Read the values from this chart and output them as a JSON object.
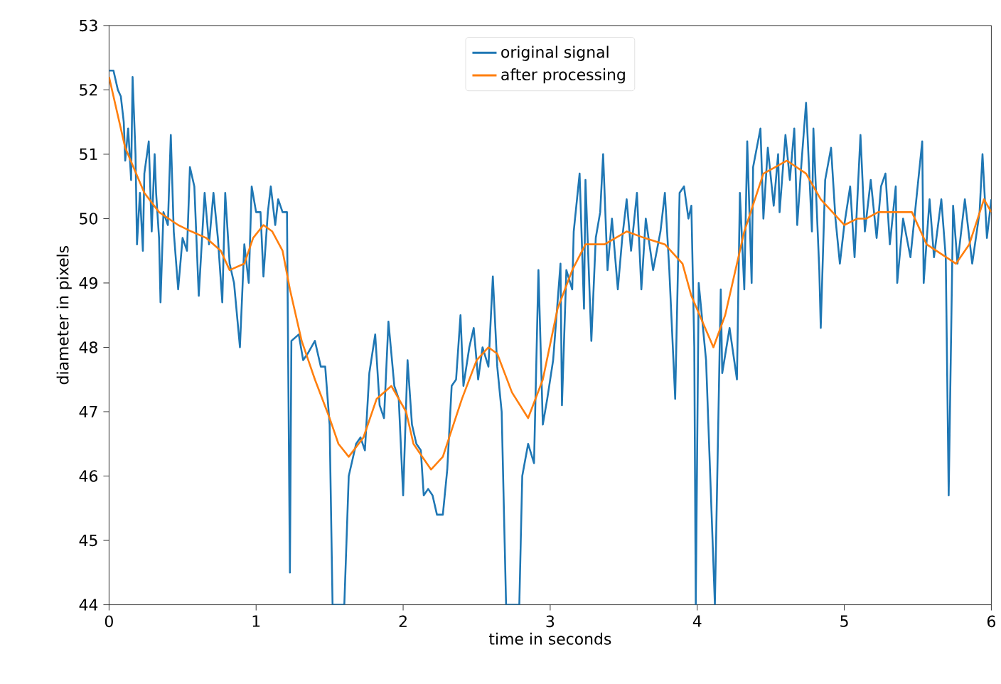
{
  "chart_data": {
    "type": "line",
    "xlabel": "time in seconds",
    "ylabel": "diameter in pixels",
    "xlim": [
      0,
      6
    ],
    "ylim": [
      44,
      53
    ],
    "xticks": [
      0,
      1,
      2,
      3,
      4,
      5,
      6
    ],
    "yticks": [
      44,
      45,
      46,
      47,
      48,
      49,
      50,
      51,
      52,
      53
    ],
    "grid": false,
    "legend": "top",
    "marker": "none",
    "line_style": "solid",
    "series": [
      {
        "name": "original signal",
        "color": "#1f77b4",
        "x": [
          0,
          0.03,
          0.06,
          0.08,
          0.1,
          0.11,
          0.13,
          0.15,
          0.16,
          0.18,
          0.19,
          0.21,
          0.23,
          0.24,
          0.27,
          0.29,
          0.31,
          0.32,
          0.34,
          0.35,
          0.37,
          0.4,
          0.42,
          0.44,
          0.47,
          0.5,
          0.53,
          0.55,
          0.58,
          0.61,
          0.65,
          0.68,
          0.71,
          0.74,
          0.77,
          0.79,
          0.82,
          0.85,
          0.89,
          0.92,
          0.95,
          0.97,
          1.0,
          1.03,
          1.05,
          1.08,
          1.1,
          1.13,
          1.15,
          1.18,
          1.21,
          1.23,
          1.24,
          1.29,
          1.32,
          1.35,
          1.4,
          1.44,
          1.47,
          1.5,
          1.52,
          1.6,
          1.63,
          1.68,
          1.71,
          1.74,
          1.77,
          1.81,
          1.84,
          1.87,
          1.9,
          1.94,
          1.97,
          2.0,
          2.03,
          2.06,
          2.09,
          2.12,
          2.14,
          2.17,
          2.2,
          2.23,
          2.27,
          2.3,
          2.33,
          2.36,
          2.39,
          2.41,
          2.45,
          2.48,
          2.51,
          2.54,
          2.58,
          2.61,
          2.64,
          2.67,
          2.7,
          2.79,
          2.81,
          2.85,
          2.89,
          2.92,
          2.95,
          2.98,
          3.02,
          3.07,
          3.08,
          3.11,
          3.15,
          3.16,
          3.2,
          3.23,
          3.24,
          3.28,
          3.31,
          3.34,
          3.36,
          3.39,
          3.42,
          3.46,
          3.49,
          3.52,
          3.55,
          3.59,
          3.62,
          3.65,
          3.7,
          3.75,
          3.78,
          3.81,
          3.85,
          3.88,
          3.91,
          3.94,
          3.96,
          3.98,
          3.99,
          4.01,
          4.06,
          4.12,
          4.16,
          4.17,
          4.22,
          4.27,
          4.29,
          4.32,
          4.34,
          4.37,
          4.38,
          4.43,
          4.45,
          4.48,
          4.52,
          4.55,
          4.56,
          4.6,
          4.63,
          4.66,
          4.68,
          4.71,
          4.74,
          4.78,
          4.79,
          4.83,
          4.84,
          4.87,
          4.91,
          4.94,
          4.97,
          5.0,
          5.04,
          5.07,
          5.11,
          5.14,
          5.18,
          5.22,
          5.25,
          5.28,
          5.31,
          5.35,
          5.36,
          5.4,
          5.45,
          5.49,
          5.53,
          5.54,
          5.58,
          5.61,
          5.66,
          5.69,
          5.71,
          5.74,
          5.77,
          5.82,
          5.87,
          5.92,
          5.94,
          5.97,
          6.0
        ],
        "values": [
          52.3,
          52.3,
          52.0,
          51.9,
          51.5,
          50.9,
          51.4,
          50.6,
          52.2,
          51.0,
          49.6,
          50.4,
          49.5,
          50.7,
          51.2,
          49.8,
          51.0,
          50.4,
          49.7,
          48.7,
          50.1,
          49.9,
          51.3,
          49.8,
          48.9,
          49.7,
          49.5,
          50.8,
          50.5,
          48.8,
          50.4,
          49.6,
          50.4,
          49.7,
          48.7,
          50.4,
          49.3,
          49.0,
          48.0,
          49.6,
          49.0,
          50.5,
          50.1,
          50.1,
          49.1,
          50.1,
          50.5,
          49.9,
          50.3,
          50.1,
          50.1,
          44.5,
          48.1,
          48.2,
          47.8,
          47.9,
          48.1,
          47.7,
          47.7,
          46.8,
          44.0,
          44.0,
          46.0,
          46.5,
          46.6,
          46.4,
          47.6,
          48.2,
          47.1,
          46.9,
          48.4,
          47.4,
          47.2,
          45.7,
          47.8,
          46.8,
          46.5,
          46.4,
          45.7,
          45.8,
          45.7,
          45.4,
          45.4,
          46.1,
          47.4,
          47.5,
          48.5,
          47.4,
          48.0,
          48.3,
          47.5,
          48.0,
          47.7,
          49.1,
          47.7,
          47.0,
          44.0,
          44.0,
          46.0,
          46.5,
          46.2,
          49.2,
          46.8,
          47.2,
          47.8,
          49.3,
          47.1,
          49.2,
          48.9,
          49.8,
          50.7,
          48.6,
          50.6,
          48.1,
          49.7,
          50.1,
          51.0,
          49.2,
          50.0,
          48.9,
          49.7,
          50.3,
          49.5,
          50.4,
          48.9,
          50.0,
          49.2,
          49.8,
          50.4,
          49.2,
          47.2,
          50.4,
          50.5,
          50.0,
          50.2,
          48.0,
          44.0,
          49.0,
          47.8,
          44.0,
          48.9,
          47.6,
          48.3,
          47.5,
          50.4,
          48.9,
          51.2,
          49.0,
          50.8,
          51.4,
          50.0,
          51.1,
          50.2,
          51.0,
          50.1,
          51.3,
          50.6,
          51.4,
          49.9,
          50.9,
          51.8,
          49.8,
          51.4,
          49.2,
          48.3,
          50.6,
          51.1,
          50.0,
          49.3,
          49.9,
          50.5,
          49.4,
          51.3,
          49.8,
          50.6,
          49.7,
          50.5,
          50.7,
          49.6,
          50.5,
          49.0,
          50.0,
          49.4,
          50.3,
          51.2,
          49.0,
          50.3,
          49.4,
          50.3,
          49.4,
          45.7,
          50.2,
          49.3,
          50.3,
          49.3,
          50.1,
          51.0,
          49.7,
          50.3
        ]
      },
      {
        "name": "after processing",
        "color": "#ff7f0e",
        "x": [
          0,
          0.11,
          0.24,
          0.34,
          0.47,
          0.56,
          0.66,
          0.76,
          0.82,
          0.92,
          0.98,
          1.05,
          1.11,
          1.18,
          1.23,
          1.31,
          1.4,
          1.5,
          1.56,
          1.63,
          1.73,
          1.82,
          1.92,
          2.02,
          2.07,
          2.19,
          2.27,
          2.4,
          2.5,
          2.58,
          2.64,
          2.74,
          2.85,
          2.95,
          3.05,
          3.15,
          3.24,
          3.37,
          3.52,
          3.64,
          3.78,
          3.9,
          3.96,
          4.11,
          4.19,
          4.32,
          4.45,
          4.53,
          4.61,
          4.74,
          4.84,
          5.0,
          5.09,
          5.15,
          5.23,
          5.4,
          5.46,
          5.56,
          5.76,
          5.85,
          5.95,
          6.0
        ],
        "values": [
          52.2,
          51.1,
          50.4,
          50.1,
          49.9,
          49.8,
          49.7,
          49.5,
          49.2,
          49.3,
          49.7,
          49.9,
          49.8,
          49.5,
          48.9,
          48.1,
          47.5,
          46.9,
          46.5,
          46.3,
          46.6,
          47.2,
          47.4,
          47.0,
          46.5,
          46.1,
          46.3,
          47.2,
          47.8,
          48.0,
          47.9,
          47.3,
          46.9,
          47.5,
          48.6,
          49.2,
          49.6,
          49.6,
          49.8,
          49.7,
          49.6,
          49.3,
          48.8,
          48.0,
          48.5,
          49.8,
          50.7,
          50.8,
          50.9,
          50.7,
          50.3,
          49.9,
          50.0,
          50.0,
          50.1,
          50.1,
          50.1,
          49.6,
          49.3,
          49.6,
          50.3,
          50.1
        ]
      }
    ]
  }
}
